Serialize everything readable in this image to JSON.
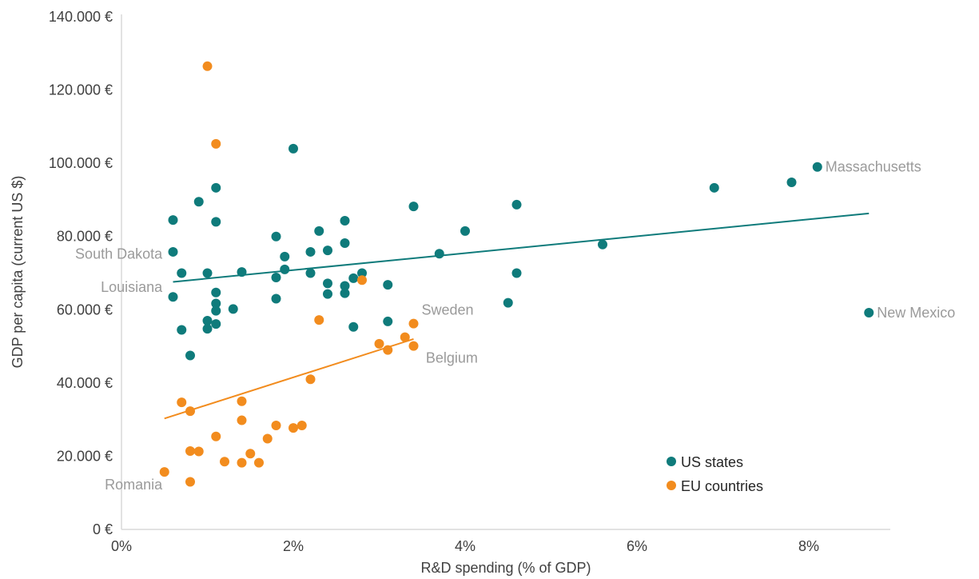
{
  "chart_data": {
    "type": "scatter",
    "title": "",
    "xlabel": "R&D spending (% of GDP)",
    "ylabel": "GDP per capita (current US $)",
    "xlim": [
      0,
      9
    ],
    "ylim": [
      0,
      140000
    ],
    "x_ticks": [
      {
        "value": 0,
        "label": "0%"
      },
      {
        "value": 2,
        "label": "2%"
      },
      {
        "value": 4,
        "label": "4%"
      },
      {
        "value": 6,
        "label": "6%"
      },
      {
        "value": 8,
        "label": "8%"
      }
    ],
    "y_ticks": [
      {
        "value": 0,
        "label": "0 €"
      },
      {
        "value": 20000,
        "label": "20.000 €"
      },
      {
        "value": 40000,
        "label": "40.000 €"
      },
      {
        "value": 60000,
        "label": "60.000 €"
      },
      {
        "value": 80000,
        "label": "80.000 €"
      },
      {
        "value": 100000,
        "label": "100.000 €"
      },
      {
        "value": 120000,
        "label": "120.000 €"
      },
      {
        "value": 140000,
        "label": "140.000 €"
      }
    ],
    "grid": false,
    "legend": {
      "position": "bottom-right"
    },
    "series": [
      {
        "name": "US states",
        "color": "#0f7b7b",
        "points": [
          [
            0.6,
            84500
          ],
          [
            0.6,
            75800
          ],
          [
            0.6,
            63500
          ],
          [
            0.7,
            70000
          ],
          [
            0.7,
            54500
          ],
          [
            0.8,
            47500
          ],
          [
            0.9,
            89500
          ],
          [
            1.0,
            70000
          ],
          [
            1.0,
            57000
          ],
          [
            1.0,
            54800
          ],
          [
            1.1,
            93300
          ],
          [
            1.1,
            84000
          ],
          [
            1.1,
            64700
          ],
          [
            1.1,
            61700
          ],
          [
            1.1,
            59700
          ],
          [
            1.1,
            56100
          ],
          [
            1.3,
            60200
          ],
          [
            1.4,
            70300
          ],
          [
            1.8,
            80000
          ],
          [
            1.8,
            68800
          ],
          [
            1.8,
            63000
          ],
          [
            1.9,
            74500
          ],
          [
            1.9,
            71000
          ],
          [
            2.0,
            104000
          ],
          [
            2.2,
            75800
          ],
          [
            2.2,
            70000
          ],
          [
            2.3,
            81500
          ],
          [
            2.4,
            76200
          ],
          [
            2.4,
            67200
          ],
          [
            2.4,
            64300
          ],
          [
            2.6,
            84300
          ],
          [
            2.6,
            78200
          ],
          [
            2.6,
            66500
          ],
          [
            2.6,
            64500
          ],
          [
            2.7,
            68600
          ],
          [
            2.7,
            55300
          ],
          [
            2.8,
            70000
          ],
          [
            3.1,
            66800
          ],
          [
            3.1,
            56800
          ],
          [
            3.4,
            88200
          ],
          [
            3.7,
            75300
          ],
          [
            4.0,
            81500
          ],
          [
            4.5,
            61900
          ],
          [
            4.6,
            88700
          ],
          [
            4.6,
            70000
          ],
          [
            5.6,
            77800
          ],
          [
            6.9,
            93300
          ],
          [
            7.8,
            94800
          ],
          [
            8.1,
            99000
          ],
          [
            8.7,
            59200
          ]
        ],
        "trendline": [
          [
            0.6,
            67600
          ],
          [
            8.7,
            86300
          ]
        ]
      },
      {
        "name": "EU countries",
        "color": "#f28c1e",
        "points": [
          [
            1.0,
            126500
          ],
          [
            1.1,
            105300
          ],
          [
            2.8,
            68100
          ],
          [
            2.3,
            57200
          ],
          [
            3.4,
            56200
          ],
          [
            3.0,
            50700
          ],
          [
            3.3,
            52500
          ],
          [
            3.1,
            49000
          ],
          [
            3.4,
            50100
          ],
          [
            2.2,
            41000
          ],
          [
            0.7,
            34700
          ],
          [
            0.8,
            32300
          ],
          [
            1.4,
            35000
          ],
          [
            1.4,
            29800
          ],
          [
            1.1,
            25400
          ],
          [
            1.8,
            28400
          ],
          [
            2.0,
            27700
          ],
          [
            2.1,
            28400
          ],
          [
            1.7,
            24800
          ],
          [
            0.8,
            21400
          ],
          [
            0.9,
            21300
          ],
          [
            1.5,
            20700
          ],
          [
            1.2,
            18500
          ],
          [
            1.4,
            18200
          ],
          [
            1.6,
            18200
          ],
          [
            0.5,
            15700
          ],
          [
            0.8,
            13000
          ]
        ],
        "trendline": [
          [
            0.5,
            30300
          ],
          [
            3.4,
            52000
          ]
        ]
      }
    ],
    "annotations": [
      {
        "text": "Massachusetts",
        "x": 8.1,
        "y": 99000,
        "align": "start"
      },
      {
        "text": "New Mexico",
        "x": 8.7,
        "y": 59200,
        "align": "start"
      },
      {
        "text": "Sweden",
        "x": 3.4,
        "y": 60000,
        "align": "start"
      },
      {
        "text": "Belgium",
        "x": 3.45,
        "y": 46800,
        "align": "start"
      },
      {
        "text": "South Dakota",
        "x": 0.55,
        "y": 75200,
        "align": "end"
      },
      {
        "text": "Louisiana",
        "x": 0.55,
        "y": 66200,
        "align": "end"
      },
      {
        "text": "Romania",
        "x": 0.55,
        "y": 12200,
        "align": "end"
      }
    ]
  }
}
